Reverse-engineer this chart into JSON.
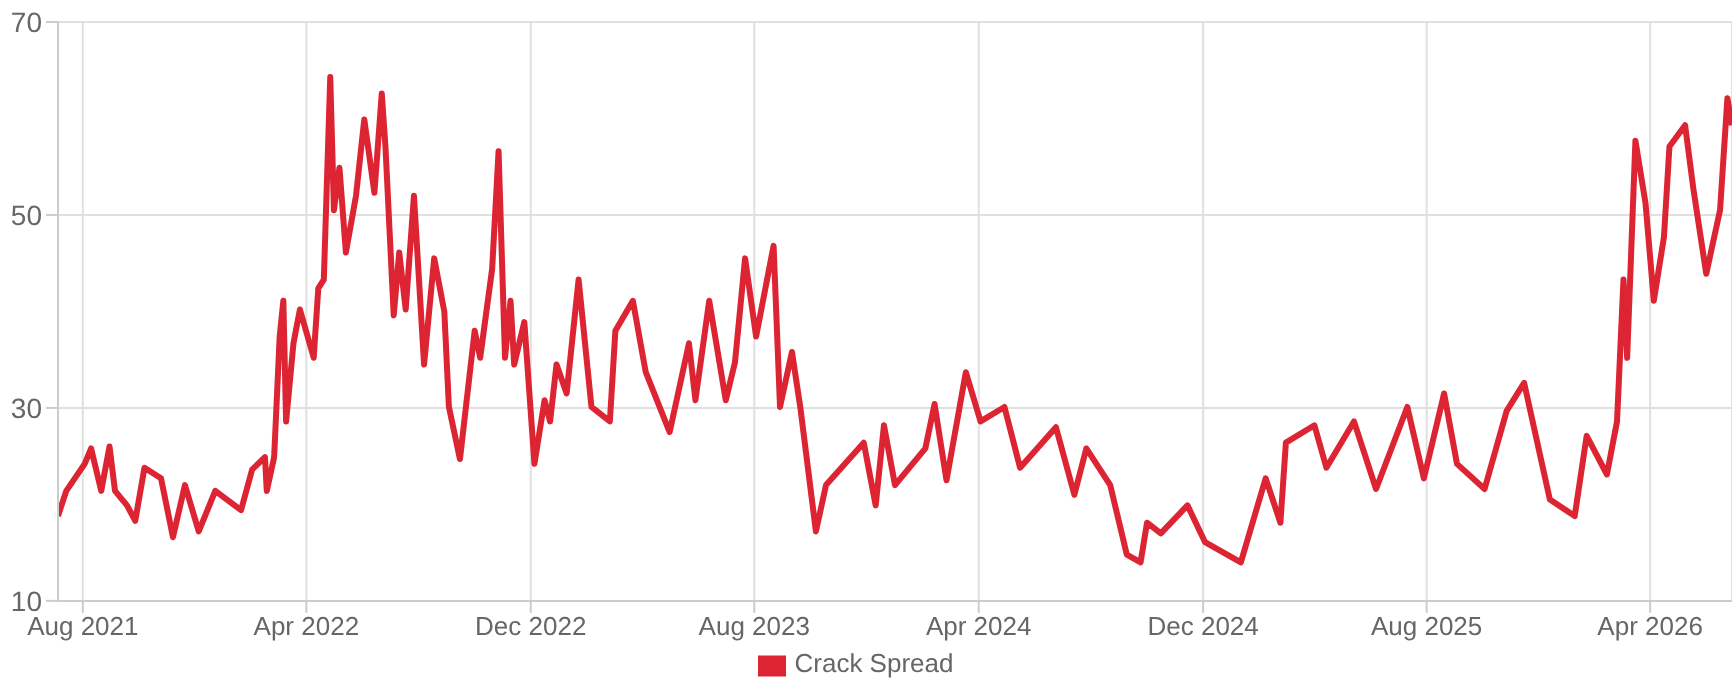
{
  "chart_data": {
    "type": "line",
    "x": [
      "2021-07-05",
      "2021-07-14",
      "2021-08-03",
      "2021-08-10",
      "2021-08-21",
      "2021-08-30",
      "2021-09-05",
      "2021-09-18",
      "2021-09-27",
      "2021-10-07",
      "2021-10-25",
      "2021-11-07",
      "2021-11-20",
      "2021-12-05",
      "2021-12-23",
      "2022-01-20",
      "2022-02-01",
      "2022-02-15",
      "2022-02-17",
      "2022-02-25",
      "2022-03-03",
      "2022-03-07",
      "2022-03-10",
      "2022-03-18",
      "2022-03-25",
      "2022-04-09",
      "2022-04-14",
      "2022-04-20",
      "2022-04-27",
      "2022-05-01",
      "2022-05-07",
      "2022-05-14",
      "2022-05-25",
      "2022-06-03",
      "2022-06-14",
      "2022-06-22",
      "2022-06-26",
      "2022-07-05",
      "2022-07-11",
      "2022-07-18",
      "2022-07-27",
      "2022-08-07",
      "2022-08-18",
      "2022-08-29",
      "2022-09-03",
      "2022-09-15",
      "2022-10-01",
      "2022-10-07",
      "2022-10-20",
      "2022-10-27",
      "2022-11-03",
      "2022-11-09",
      "2022-11-13",
      "2022-11-24",
      "2022-12-05",
      "2022-12-16",
      "2022-12-22",
      "2022-12-29",
      "2023-01-09",
      "2023-01-22",
      "2023-02-05",
      "2023-02-25",
      "2023-03-03",
      "2023-03-22",
      "2023-04-05",
      "2023-05-01",
      "2023-05-22",
      "2023-05-29",
      "2023-06-13",
      "2023-07-01",
      "2023-07-11",
      "2023-07-22",
      "2023-08-03",
      "2023-08-22",
      "2023-08-29",
      "2023-09-11",
      "2023-09-20",
      "2023-10-07",
      "2023-10-18",
      "2023-11-28",
      "2023-12-11",
      "2023-12-20",
      "2024-01-01",
      "2024-02-03",
      "2024-02-13",
      "2024-02-26",
      "2024-03-18",
      "2024-04-03",
      "2024-04-29",
      "2024-05-16",
      "2024-06-24",
      "2024-07-14",
      "2024-07-27",
      "2024-08-22",
      "2024-09-09",
      "2024-09-24",
      "2024-10-01",
      "2024-10-16",
      "2024-11-14",
      "2024-12-03",
      "2025-01-11",
      "2025-02-07",
      "2025-02-23",
      "2025-03-01",
      "2025-04-01",
      "2025-04-14",
      "2025-05-14",
      "2025-06-07",
      "2025-07-11",
      "2025-07-29",
      "2025-08-20",
      "2025-09-03",
      "2025-10-03",
      "2025-10-27",
      "2025-11-15",
      "2025-12-13",
      "2026-01-09",
      "2026-01-22",
      "2026-02-13",
      "2026-02-24",
      "2026-03-03",
      "2026-03-07",
      "2026-03-16",
      "2026-03-27",
      "2026-04-05",
      "2026-04-16",
      "2026-04-22",
      "2026-05-09",
      "2026-05-18",
      "2026-06-01",
      "2026-06-16",
      "2026-06-24",
      "2026-06-29"
    ],
    "series": [
      {
        "name": "Crack Spread",
        "color": "#dc2433",
        "values": [
          18.8,
          21.4,
          24.2,
          25.8,
          21.4,
          26,
          21.4,
          19.9,
          18.3,
          23.8,
          22.7,
          16.6,
          22,
          17.2,
          21.4,
          19.4,
          23.6,
          24.9,
          21.4,
          24.9,
          37.4,
          41.1,
          28.6,
          36.7,
          40.2,
          35.2,
          42.4,
          43.3,
          64.3,
          50.5,
          54.9,
          46.1,
          52,
          59.9,
          52.3,
          62.6,
          57.1,
          39.6,
          46.1,
          40.2,
          52,
          34.5,
          45.5,
          40,
          30.1,
          24.7,
          38,
          35.2,
          44.4,
          56.6,
          35.2,
          41.1,
          34.5,
          38.9,
          24.2,
          30.8,
          28.6,
          34.5,
          31.5,
          43.3,
          30.1,
          28.6,
          38,
          41.1,
          33.7,
          27.5,
          36.7,
          30.8,
          41.1,
          30.8,
          34.7,
          45.5,
          37.4,
          46.8,
          30.1,
          35.8,
          30.1,
          17.2,
          22,
          26.4,
          19.9,
          28.2,
          22,
          25.8,
          30.4,
          22.5,
          33.7,
          28.6,
          30.1,
          23.8,
          28,
          21,
          25.8,
          22,
          14.8,
          14,
          18.1,
          17,
          19.9,
          16.1,
          14,
          22.7,
          18.1,
          26.4,
          28.2,
          23.8,
          28.6,
          21.6,
          30.1,
          22.7,
          31.5,
          24.2,
          21.6,
          29.7,
          32.6,
          20.5,
          18.8,
          27.1,
          23.1,
          28.6,
          43.3,
          35.2,
          57.7,
          51.2,
          41.1,
          47.7,
          57.1,
          59.3,
          52.7,
          43.9,
          50.5,
          62.1,
          59.3
        ]
      }
    ],
    "xlim": [
      "2021-07-05",
      "2026-06-29"
    ],
    "xticks": [
      {
        "value": "2021-08-01",
        "label": "Aug 2021"
      },
      {
        "value": "2022-04-01",
        "label": "Apr 2022"
      },
      {
        "value": "2022-12-01",
        "label": "Dec 2022"
      },
      {
        "value": "2023-08-01",
        "label": "Aug 2023"
      },
      {
        "value": "2024-04-01",
        "label": "Apr 2024"
      },
      {
        "value": "2024-12-01",
        "label": "Dec 2024"
      },
      {
        "value": "2025-08-01",
        "label": "Aug 2025"
      },
      {
        "value": "2026-04-01",
        "label": "Apr 2026"
      }
    ],
    "ylim": [
      10,
      70
    ],
    "yticks": [
      10,
      30,
      50,
      70
    ],
    "grid": true,
    "legend": "bottom",
    "marker": "none",
    "line_style": "solid"
  }
}
